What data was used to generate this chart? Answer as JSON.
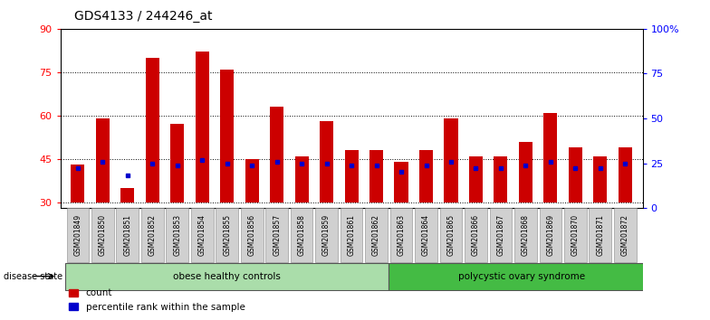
{
  "title": "GDS4133 / 244246_at",
  "samples": [
    "GSM201849",
    "GSM201850",
    "GSM201851",
    "GSM201852",
    "GSM201853",
    "GSM201854",
    "GSM201855",
    "GSM201856",
    "GSM201857",
    "GSM201858",
    "GSM201859",
    "GSM201861",
    "GSM201862",
    "GSM201863",
    "GSM201864",
    "GSM201865",
    "GSM201866",
    "GSM201867",
    "GSM201868",
    "GSM201869",
    "GSM201870",
    "GSM201871",
    "GSM201872"
  ],
  "counts": [
    43,
    59,
    35,
    80,
    57,
    82,
    76,
    45,
    63,
    46,
    58,
    48,
    48,
    44,
    48,
    59,
    46,
    46,
    51,
    61,
    49,
    46,
    49
  ],
  "percentiles_pct": [
    22,
    26,
    18,
    25,
    24,
    27,
    25,
    24,
    26,
    25,
    25,
    24,
    24,
    20,
    24,
    26,
    22,
    22,
    24,
    26,
    22,
    22,
    25
  ],
  "groups": [
    {
      "label": "obese healthy controls",
      "start": 0,
      "end": 13,
      "color": "#aaddaa"
    },
    {
      "label": "polycystic ovary syndrome",
      "start": 13,
      "end": 23,
      "color": "#44bb44"
    }
  ],
  "bar_color": "#CC0000",
  "percentile_color": "#0000CC",
  "ylim_left": [
    28,
    90
  ],
  "ylim_right": [
    0,
    100
  ],
  "yticks_left": [
    30,
    45,
    60,
    75,
    90
  ],
  "yticks_right": [
    0,
    25,
    50,
    75,
    100
  ],
  "ytick_labels_right": [
    "0",
    "25",
    "50",
    "75",
    "100%"
  ]
}
